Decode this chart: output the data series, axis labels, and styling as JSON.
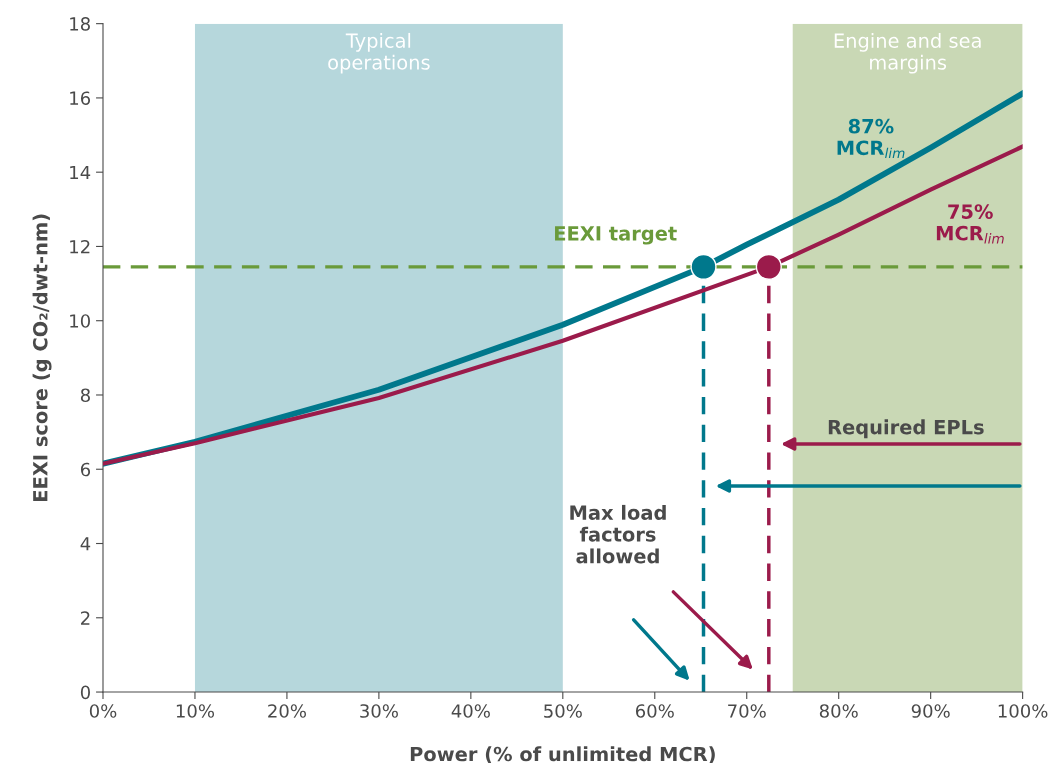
{
  "chart_data": {
    "type": "line",
    "xlabel": "Power (% of unlimited MCR)",
    "ylabel": "EEXI score (g CO₂/dwt-nm)",
    "series": [
      {
        "name": "87% MCR$_{lim}$",
        "color": "#00788c",
        "x": [
          0,
          10,
          30,
          50,
          65.3,
          70,
          80,
          90,
          100
        ],
        "values": [
          6.15,
          6.74,
          8.14,
          9.89,
          11.45,
          12.05,
          13.26,
          14.66,
          16.12
        ]
      },
      {
        "name": "75% MCR$_{lim}$",
        "color": "#9b1b4b",
        "x": [
          0,
          10,
          30,
          50,
          72.4,
          80,
          90,
          100
        ],
        "values": [
          6.15,
          6.7,
          7.92,
          9.46,
          11.45,
          12.32,
          13.53,
          14.69
        ]
      },
      {
        "type": "line",
        "color": "#00788c",
        "line_style": "dashed",
        "x": [
          65.3,
          65.3
        ],
        "values": [
          0,
          11.45
        ]
      },
      {
        "type": "line",
        "color": "#9b1b4b",
        "line_style": "dashed",
        "x": [
          72.4,
          72.4
        ],
        "values": [
          0,
          11.45
        ]
      },
      {
        "type": "scatter",
        "color": "#00788c",
        "x": [
          65.3
        ],
        "values": [
          11.45
        ]
      },
      {
        "type": "scatter",
        "color": "#9b1b4b",
        "x": [
          72.4
        ],
        "values": [
          11.45
        ]
      }
    ],
    "ref_lines": [
      {
        "axis": "y",
        "value": 11.45,
        "label": "EEXI target",
        "color": "#6a9a3a",
        "line_style": "dashed"
      }
    ],
    "bands": [
      {
        "axis": "x",
        "from": 10,
        "to": 50,
        "label": "Typical\noperations",
        "color": "#b6d7dc"
      },
      {
        "axis": "x",
        "from": 75,
        "to": 100,
        "label": "Engine and sea\nmargins",
        "color": "#c9d8b5"
      }
    ],
    "annotations": [
      "Required EPLs",
      "Max load\nfactors\nallowed"
    ],
    "xlim": [
      0,
      100
    ],
    "xticks": [
      {
        "value": 0,
        "label": "0%"
      },
      {
        "value": 10,
        "label": "10%"
      },
      {
        "value": 20,
        "label": "20%"
      },
      {
        "value": 30,
        "label": "30%"
      },
      {
        "value": 40,
        "label": "40%"
      },
      {
        "value": 50,
        "label": "50%"
      },
      {
        "value": 60,
        "label": "60%"
      },
      {
        "value": 70,
        "label": "70%"
      },
      {
        "value": 80,
        "label": "80%"
      },
      {
        "value": 90,
        "label": "90%"
      },
      {
        "value": 100,
        "label": "100%"
      }
    ],
    "ylim": [
      0,
      18
    ],
    "yticks": [
      0,
      2,
      4,
      6,
      8,
      10,
      12,
      14,
      16,
      18
    ],
    "grid": false,
    "legend": false
  }
}
